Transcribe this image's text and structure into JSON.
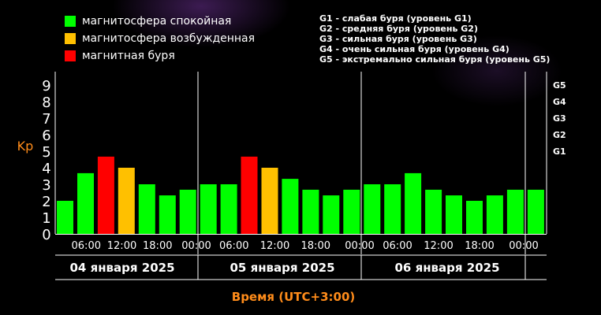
{
  "legend": {
    "states": [
      {
        "label": "магнитосфера спокойная",
        "color": "#00ff00"
      },
      {
        "label": "магнитосфера возбужденная",
        "color": "#ffc000"
      },
      {
        "label": "магнитная буря",
        "color": "#ff0000"
      }
    ],
    "storm_levels": [
      "G1 - слабая буря (уровень G1)",
      "G2 - средняя буря (уровень G2)",
      "G3 - сильная буря (уровень G3)",
      "G4 - очень сильная буря (уровень G4)",
      "G5 - экстремально сильная буря (уровень G5)"
    ]
  },
  "colors": {
    "text_accent": "#ff8c1a",
    "quiet": "#00ff00",
    "active": "#ffc000",
    "storm": "#ff0000"
  },
  "chart_data": {
    "type": "bar",
    "ylabel": "Kp",
    "xlabel": "Время (UTC+3:00)",
    "ylim": [
      0,
      9
    ],
    "y_ticks": [
      "0",
      "1",
      "2",
      "3",
      "4",
      "5",
      "6",
      "7",
      "8",
      "9"
    ],
    "right_ticks": [
      {
        "label": "G1",
        "value": 5
      },
      {
        "label": "G2",
        "value": 6
      },
      {
        "label": "G3",
        "value": 7
      },
      {
        "label": "G4",
        "value": 8
      },
      {
        "label": "G5",
        "value": 9
      }
    ],
    "time_ticks": [
      "06:00",
      "12:00",
      "18:00",
      "00:00",
      "06:00",
      "12:00",
      "18:00",
      "00:00",
      "06:00",
      "12:00",
      "18:00",
      "00:00"
    ],
    "days": [
      "04 января 2025",
      "05 января 2025",
      "06 января 2025"
    ],
    "grid": false,
    "values": [
      2.0,
      3.67,
      4.67,
      4.0,
      3.0,
      2.33,
      2.67,
      3.0,
      3.0,
      4.67,
      4.0,
      3.33,
      2.67,
      2.33,
      2.67,
      3.0,
      3.0,
      3.67,
      2.67,
      2.33,
      2.0,
      2.33,
      2.67,
      2.67
    ],
    "status": [
      "quiet",
      "quiet",
      "storm",
      "active",
      "quiet",
      "quiet",
      "quiet",
      "quiet",
      "quiet",
      "storm",
      "active",
      "quiet",
      "quiet",
      "quiet",
      "quiet",
      "quiet",
      "quiet",
      "quiet",
      "quiet",
      "quiet",
      "quiet",
      "quiet",
      "quiet",
      "quiet"
    ]
  }
}
